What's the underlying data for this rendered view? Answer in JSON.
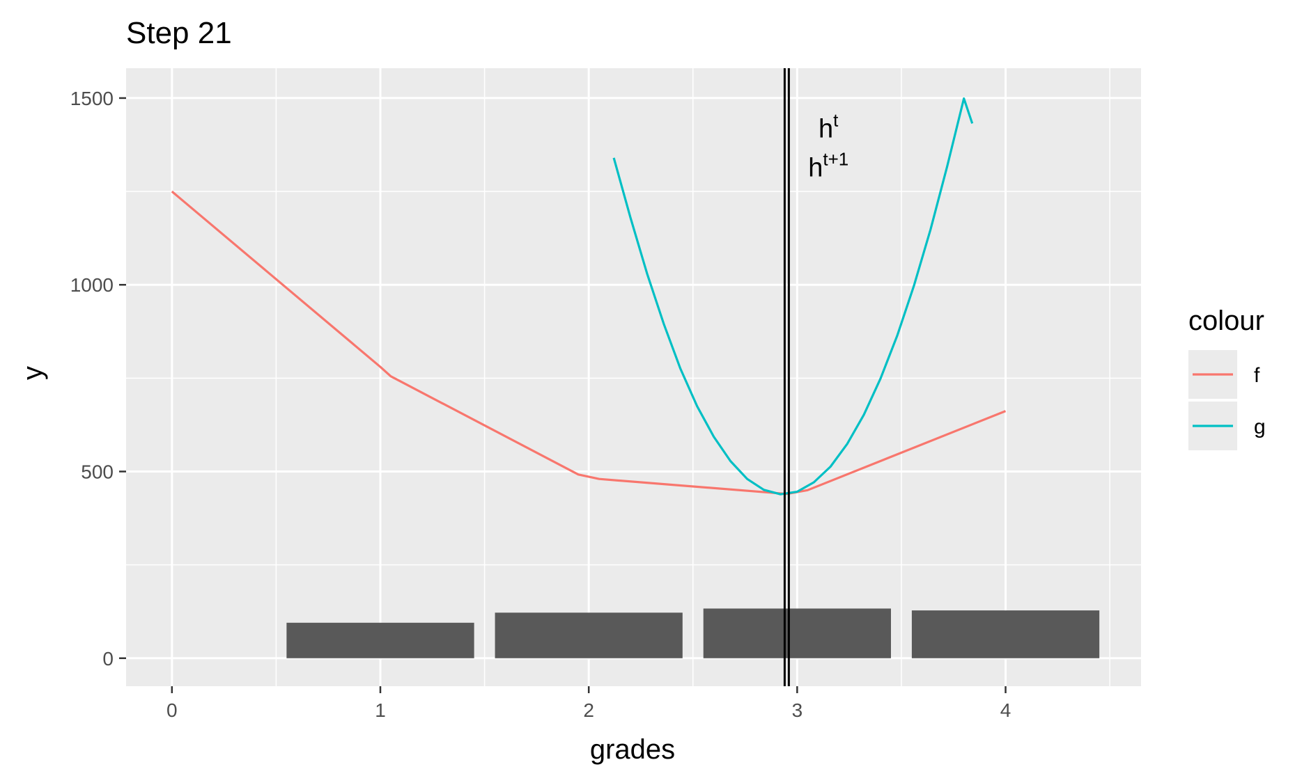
{
  "chart_data": {
    "type": "line",
    "title": "Step 21",
    "xlabel": "grades",
    "ylabel": "y",
    "xlim": [
      -0.22,
      4.65
    ],
    "ylim": [
      -75,
      1580
    ],
    "x_ticks": [
      0,
      1,
      2,
      3,
      4
    ],
    "x_tick_labels": [
      "0",
      "1",
      "2",
      "3",
      "4"
    ],
    "y_ticks": [
      0,
      500,
      1000,
      1500
    ],
    "y_tick_labels": [
      "0",
      "500",
      "1000",
      "1500"
    ],
    "x_minor_gridlines": [
      0.5,
      1.5,
      2.5,
      3.5,
      4.5
    ],
    "y_minor_gridlines": [
      250,
      750,
      1250
    ],
    "grid": true,
    "background": "#ebebeb",
    "bars": {
      "color": "#595959",
      "width": 0.9,
      "categories": [
        1,
        2,
        3,
        4
      ],
      "values": [
        95,
        122,
        133,
        128
      ]
    },
    "series": [
      {
        "name": "f",
        "color": "#f8766d",
        "x": [
          0,
          1,
          1.05,
          1.95,
          2.05,
          2.95,
          3.05,
          4
        ],
        "y": [
          1250,
          780,
          755,
          492,
          480,
          440,
          450,
          662
        ]
      },
      {
        "name": "g",
        "color": "#00bfc4",
        "x": [
          2.12,
          2.2,
          2.28,
          2.36,
          2.44,
          2.52,
          2.6,
          2.68,
          2.76,
          2.84,
          2.92,
          3.0,
          3.08,
          3.16,
          3.24,
          3.32,
          3.4,
          3.48,
          3.56,
          3.64,
          3.72,
          3.8,
          3.84
        ],
        "y": [
          1340,
          1180,
          1030,
          895,
          775,
          675,
          593,
          528,
          480,
          451,
          439,
          446,
          471,
          513,
          574,
          652,
          749,
          864,
          997,
          1148,
          1318,
          1499,
          1432
        ]
      }
    ],
    "vlines": [
      {
        "x": 2.94,
        "color": "#000000"
      },
      {
        "x": 2.96,
        "color": "#000000"
      }
    ],
    "annotations": [
      {
        "x": 3.15,
        "y": 1395,
        "base": "h",
        "sup": "t"
      },
      {
        "x": 3.15,
        "y": 1290,
        "base": "h",
        "sup": "t+1"
      }
    ],
    "legend": {
      "title": "colour",
      "position": "right",
      "entries": [
        {
          "label": "f",
          "color": "#f8766d"
        },
        {
          "label": "g",
          "color": "#00bfc4"
        }
      ]
    }
  }
}
